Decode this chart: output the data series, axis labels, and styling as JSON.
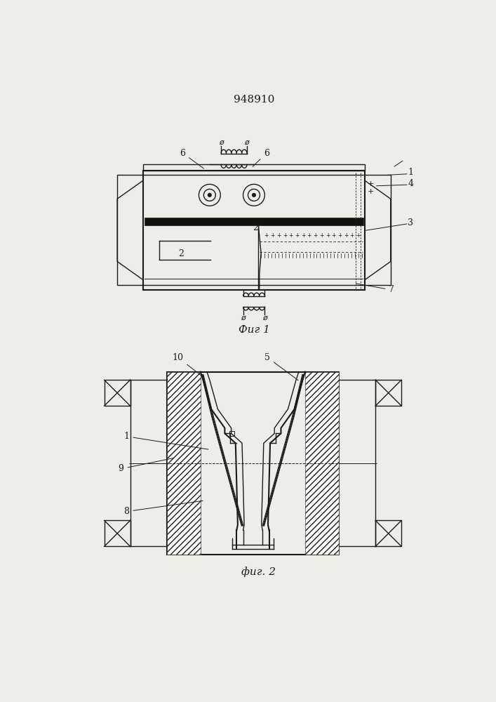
{
  "title": "948910",
  "fig1_label": "Фиг 1",
  "fig2_label": "фиг. 2",
  "bg_color": "#eeede8",
  "line_color": "#1a1a1a",
  "fig_width": 7.07,
  "fig_height": 10.0,
  "dpi": 100
}
